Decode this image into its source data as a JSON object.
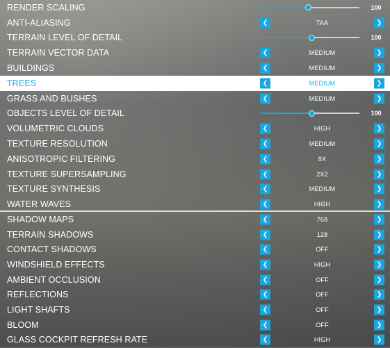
{
  "colors": {
    "accent": "#1ca6df",
    "selected_bg": "#ffffff",
    "selected_text": "#1eb3e6"
  },
  "icons": {
    "left": "chevron-left-icon",
    "right": "chevron-right-icon"
  },
  "top_panel": [
    {
      "label": "RENDER SCALING",
      "type": "slider",
      "value": "100",
      "level": 0.48
    },
    {
      "label": "ANTI-ALIASING",
      "type": "select",
      "value": "TAA"
    },
    {
      "label": "TERRAIN LEVEL OF DETAIL",
      "type": "slider",
      "value": "100",
      "level": 0.52
    },
    {
      "label": "TERRAIN VECTOR DATA",
      "type": "select",
      "value": "MEDIUM"
    },
    {
      "label": "BUILDINGS",
      "type": "select",
      "value": "MEDIUM"
    },
    {
      "label": "TREES",
      "type": "select",
      "value": "MEDIUM",
      "selected": true
    },
    {
      "label": "GRASS AND BUSHES",
      "type": "select",
      "value": "MEDIUM"
    },
    {
      "label": "OBJECTS LEVEL OF DETAIL",
      "type": "slider",
      "value": "100",
      "level": 0.52
    },
    {
      "label": "VOLUMETRIC CLOUDS",
      "type": "select",
      "value": "HIGH"
    },
    {
      "label": "TEXTURE RESOLUTION",
      "type": "select",
      "value": "MEDIUM"
    },
    {
      "label": "ANISOTROPIC FILTERING",
      "type": "select",
      "value": "8X"
    },
    {
      "label": "TEXTURE SUPERSAMPLING",
      "type": "select",
      "value": "2X2"
    },
    {
      "label": "TEXTURE SYNTHESIS",
      "type": "select",
      "value": "MEDIUM"
    },
    {
      "label": "WATER WAVES",
      "type": "select",
      "value": "HIGH"
    }
  ],
  "bottom_panel": [
    {
      "label": "SHADOW MAPS",
      "type": "select",
      "value": "768"
    },
    {
      "label": "TERRAIN SHADOWS",
      "type": "select",
      "value": "128"
    },
    {
      "label": "CONTACT SHADOWS",
      "type": "select",
      "value": "OFF"
    },
    {
      "label": "WINDSHIELD EFFECTS",
      "type": "select",
      "value": "HIGH"
    },
    {
      "label": "AMBIENT OCCLUSION",
      "type": "select",
      "value": "OFF"
    },
    {
      "label": "REFLECTIONS",
      "type": "select",
      "value": "OFF"
    },
    {
      "label": "LIGHT SHAFTS",
      "type": "select",
      "value": "OFF"
    },
    {
      "label": "BLOOM",
      "type": "select",
      "value": "OFF"
    },
    {
      "label": "GLASS COCKPIT REFRESH RATE",
      "type": "select",
      "value": "HIGH"
    }
  ]
}
